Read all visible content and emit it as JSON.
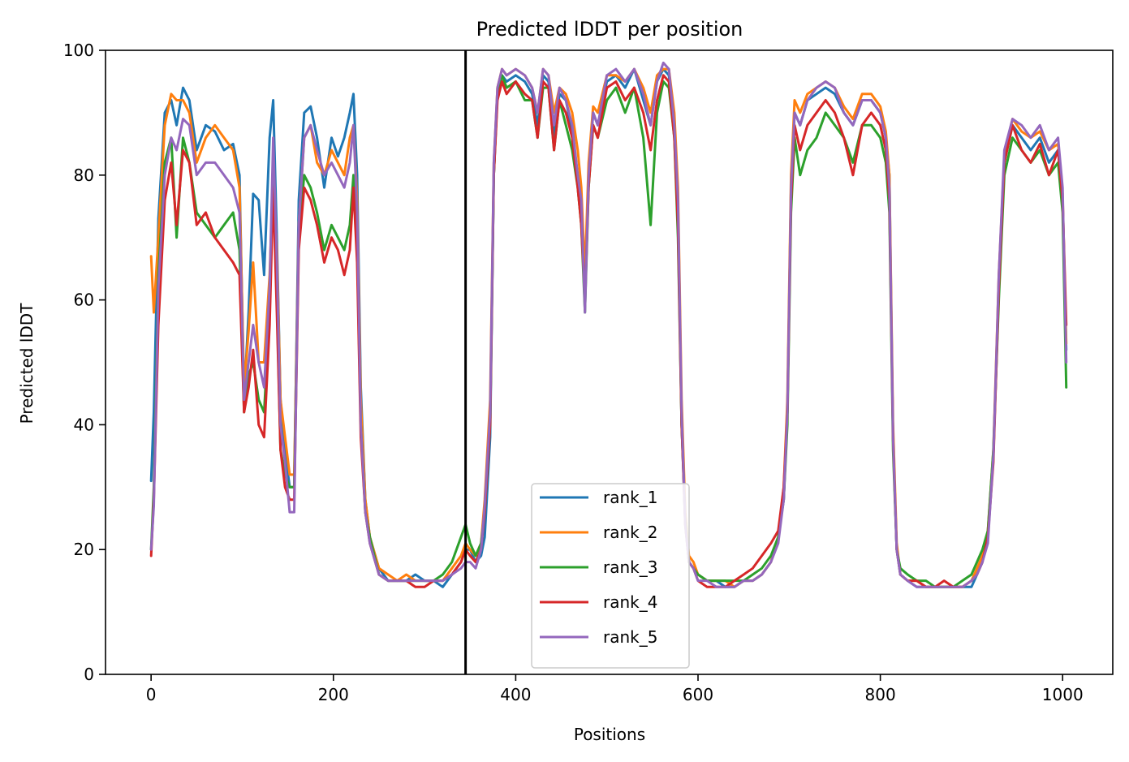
{
  "chart_data": {
    "type": "line",
    "title": "Predicted lDDT per position",
    "xlabel": "Positions",
    "ylabel": "Predicted lDDT",
    "xlim": [
      -50,
      1055
    ],
    "ylim": [
      0,
      100
    ],
    "xticks": [
      0,
      200,
      400,
      600,
      800,
      1000
    ],
    "yticks": [
      0,
      20,
      40,
      60,
      80,
      100
    ],
    "grid": false,
    "legend_position": "lower center",
    "vline_x": 345,
    "colors": {
      "rank_1": "#1f77b4",
      "rank_2": "#ff7f0e",
      "rank_3": "#2ca02c",
      "rank_4": "#d62728",
      "rank_5": "#9467bd",
      "vline": "#000000"
    },
    "profile_x": [
      0,
      3,
      8,
      15,
      22,
      28,
      35,
      42,
      50,
      60,
      70,
      80,
      90,
      97,
      102,
      107,
      112,
      118,
      124,
      130,
      134,
      138,
      142,
      147,
      152,
      157,
      162,
      168,
      175,
      182,
      190,
      198,
      205,
      212,
      218,
      222,
      226,
      230,
      235,
      240,
      250,
      260,
      270,
      280,
      290,
      300,
      310,
      320,
      330,
      340,
      345,
      350,
      356,
      362,
      366,
      372,
      376,
      380,
      385,
      390,
      400,
      410,
      418,
      424,
      430,
      436,
      442,
      448,
      455,
      462,
      468,
      472,
      476,
      480,
      485,
      490,
      500,
      510,
      520,
      530,
      540,
      548,
      555,
      562,
      568,
      574,
      578,
      582,
      586,
      590,
      595,
      600,
      610,
      620,
      630,
      640,
      650,
      660,
      670,
      680,
      688,
      694,
      698,
      702,
      706,
      712,
      720,
      730,
      740,
      750,
      760,
      770,
      780,
      790,
      800,
      806,
      810,
      814,
      818,
      822,
      830,
      840,
      850,
      860,
      870,
      880,
      890,
      900,
      906,
      912,
      918,
      924,
      930,
      936,
      945,
      955,
      965,
      975,
      985,
      995,
      1000,
      1004
    ],
    "series": [
      {
        "name": "rank_1",
        "values": [
          31,
          42,
          73,
          90,
          92,
          88,
          94,
          92,
          84,
          88,
          87,
          84,
          85,
          80,
          44,
          58,
          77,
          76,
          64,
          86,
          92,
          70,
          44,
          36,
          30,
          30,
          76,
          90,
          91,
          86,
          78,
          86,
          83,
          86,
          90,
          93,
          80,
          46,
          28,
          22,
          17,
          15,
          15,
          15,
          16,
          15,
          15,
          14,
          16,
          18,
          20,
          20,
          18,
          19,
          22,
          38,
          80,
          93,
          96,
          95,
          96,
          95,
          93,
          88,
          96,
          95,
          86,
          93,
          92,
          87,
          80,
          76,
          62,
          80,
          90,
          88,
          95,
          96,
          94,
          97,
          92,
          88,
          95,
          97,
          96,
          88,
          75,
          40,
          24,
          18,
          17,
          16,
          15,
          15,
          14,
          14,
          15,
          15,
          16,
          18,
          22,
          28,
          42,
          78,
          90,
          88,
          92,
          93,
          94,
          93,
          90,
          88,
          92,
          92,
          90,
          86,
          80,
          38,
          20,
          16,
          15,
          14,
          14,
          14,
          14,
          14,
          14,
          14,
          16,
          18,
          22,
          35,
          62,
          82,
          88,
          86,
          84,
          86,
          82,
          84,
          76,
          52
        ]
      },
      {
        "name": "rank_2",
        "values": [
          67,
          58,
          70,
          88,
          93,
          92,
          92,
          90,
          82,
          86,
          88,
          86,
          84,
          78,
          46,
          55,
          66,
          50,
          50,
          64,
          80,
          68,
          44,
          38,
          32,
          32,
          72,
          86,
          88,
          82,
          80,
          84,
          82,
          80,
          86,
          88,
          76,
          44,
          28,
          22,
          17,
          16,
          15,
          16,
          15,
          15,
          15,
          15,
          17,
          19,
          21,
          20,
          19,
          21,
          28,
          44,
          82,
          94,
          97,
          96,
          97,
          96,
          94,
          90,
          97,
          96,
          90,
          94,
          93,
          90,
          84,
          78,
          64,
          82,
          91,
          90,
          96,
          96,
          95,
          97,
          94,
          90,
          96,
          97,
          97,
          90,
          78,
          44,
          26,
          19,
          18,
          16,
          15,
          15,
          15,
          14,
          15,
          15,
          16,
          18,
          22,
          30,
          44,
          80,
          92,
          90,
          93,
          94,
          95,
          94,
          91,
          89,
          93,
          93,
          91,
          87,
          80,
          40,
          21,
          16,
          15,
          15,
          14,
          14,
          14,
          14,
          14,
          15,
          17,
          19,
          23,
          36,
          64,
          83,
          89,
          87,
          86,
          87,
          84,
          85,
          77,
          53
        ]
      },
      {
        "name": "rank_3",
        "values": [
          20,
          30,
          64,
          82,
          86,
          70,
          86,
          82,
          74,
          72,
          70,
          72,
          74,
          68,
          42,
          48,
          50,
          44,
          42,
          58,
          80,
          60,
          36,
          32,
          30,
          30,
          70,
          80,
          78,
          74,
          68,
          72,
          70,
          68,
          72,
          80,
          68,
          40,
          26,
          22,
          16,
          15,
          15,
          15,
          15,
          15,
          15,
          16,
          18,
          22,
          24,
          21,
          19,
          21,
          26,
          40,
          80,
          93,
          96,
          94,
          95,
          92,
          92,
          86,
          94,
          94,
          84,
          92,
          88,
          84,
          78,
          72,
          58,
          78,
          88,
          86,
          92,
          94,
          90,
          94,
          86,
          72,
          90,
          95,
          94,
          86,
          70,
          40,
          25,
          18,
          17,
          16,
          15,
          15,
          15,
          15,
          15,
          16,
          17,
          19,
          22,
          28,
          40,
          74,
          86,
          80,
          84,
          86,
          90,
          88,
          86,
          82,
          88,
          88,
          86,
          82,
          74,
          36,
          20,
          17,
          16,
          15,
          15,
          14,
          14,
          14,
          15,
          16,
          18,
          20,
          23,
          36,
          60,
          80,
          86,
          84,
          82,
          84,
          80,
          82,
          74,
          46
        ]
      },
      {
        "name": "rank_4",
        "values": [
          19,
          28,
          56,
          76,
          82,
          72,
          84,
          82,
          72,
          74,
          70,
          68,
          66,
          64,
          42,
          46,
          52,
          40,
          38,
          56,
          78,
          58,
          36,
          30,
          28,
          28,
          68,
          78,
          76,
          72,
          66,
          70,
          68,
          64,
          68,
          78,
          66,
          38,
          26,
          21,
          16,
          15,
          15,
          15,
          14,
          14,
          15,
          15,
          16,
          18,
          20,
          19,
          18,
          20,
          26,
          40,
          80,
          92,
          95,
          93,
          95,
          93,
          92,
          86,
          95,
          94,
          84,
          92,
          90,
          86,
          78,
          72,
          60,
          78,
          88,
          86,
          94,
          95,
          92,
          94,
          90,
          84,
          92,
          96,
          95,
          86,
          72,
          40,
          24,
          18,
          17,
          15,
          14,
          14,
          14,
          15,
          16,
          17,
          19,
          21,
          23,
          30,
          42,
          76,
          88,
          84,
          88,
          90,
          92,
          90,
          86,
          80,
          88,
          90,
          88,
          84,
          76,
          38,
          20,
          16,
          15,
          15,
          14,
          14,
          15,
          14,
          14,
          15,
          16,
          18,
          22,
          34,
          62,
          82,
          88,
          84,
          82,
          85,
          80,
          84,
          76,
          56
        ]
      },
      {
        "name": "rank_5",
        "values": [
          20,
          27,
          62,
          80,
          86,
          84,
          89,
          88,
          80,
          82,
          82,
          80,
          78,
          74,
          44,
          50,
          56,
          50,
          46,
          62,
          86,
          66,
          40,
          34,
          26,
          26,
          72,
          86,
          88,
          84,
          80,
          82,
          80,
          78,
          82,
          88,
          74,
          40,
          26,
          21,
          16,
          15,
          15,
          15,
          15,
          15,
          15,
          15,
          16,
          17,
          18,
          18,
          17,
          20,
          27,
          42,
          82,
          94,
          97,
          96,
          97,
          96,
          94,
          90,
          97,
          96,
          88,
          94,
          92,
          88,
          80,
          76,
          58,
          80,
          90,
          88,
          96,
          97,
          95,
          97,
          93,
          88,
          95,
          98,
          97,
          88,
          76,
          42,
          24,
          18,
          17,
          15,
          15,
          14,
          14,
          14,
          15,
          15,
          16,
          18,
          21,
          28,
          42,
          78,
          90,
          88,
          92,
          94,
          95,
          94,
          90,
          88,
          92,
          92,
          90,
          86,
          78,
          38,
          20,
          16,
          15,
          14,
          14,
          14,
          14,
          14,
          14,
          15,
          16,
          18,
          21,
          35,
          64,
          84,
          89,
          88,
          86,
          88,
          84,
          86,
          78,
          50
        ]
      }
    ]
  }
}
